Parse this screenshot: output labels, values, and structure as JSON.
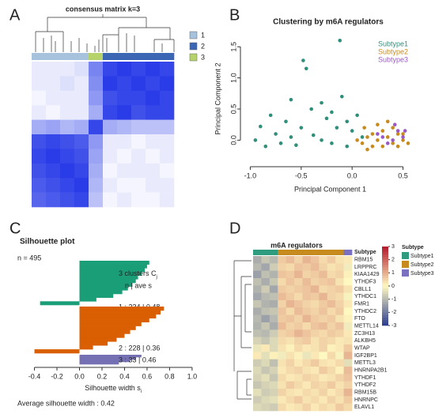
{
  "chart_data": [
    {
      "type": "consensus",
      "label": "A",
      "title": "consensus matrix k=3",
      "legend": [
        {
          "name": "1",
          "color": "#a6c2dc"
        },
        {
          "name": "2",
          "color": "#3a66b4"
        },
        {
          "name": "3",
          "color": "#b5d36a"
        }
      ],
      "column_clusters": [
        "1",
        "1",
        "1",
        "1",
        "3",
        "2",
        "2",
        "2",
        "2",
        "2"
      ],
      "clim": [
        0,
        1
      ],
      "values": [
        [
          0.1,
          0.1,
          0.1,
          0.15,
          0.6,
          0.9,
          0.95,
          0.9,
          0.95,
          0.9
        ],
        [
          0.1,
          0.1,
          0.15,
          0.1,
          0.55,
          0.95,
          0.9,
          0.95,
          0.9,
          0.95
        ],
        [
          0.05,
          0.1,
          0.1,
          0.1,
          0.5,
          0.85,
          0.9,
          0.9,
          0.95,
          0.9
        ],
        [
          0.1,
          0.05,
          0.1,
          0.1,
          0.4,
          0.9,
          0.95,
          0.85,
          0.9,
          0.9
        ],
        [
          0.4,
          0.45,
          0.35,
          0.4,
          0.9,
          0.4,
          0.35,
          0.3,
          0.3,
          0.3
        ],
        [
          0.85,
          0.9,
          0.85,
          0.8,
          0.5,
          0.1,
          0.1,
          0.05,
          0.1,
          0.1
        ],
        [
          0.9,
          0.95,
          0.9,
          0.85,
          0.45,
          0.1,
          0.05,
          0.1,
          0.05,
          0.1
        ],
        [
          0.85,
          0.9,
          0.95,
          0.9,
          0.4,
          0.05,
          0.1,
          0.1,
          0.1,
          0.05
        ],
        [
          0.8,
          0.85,
          0.9,
          0.95,
          0.35,
          0.1,
          0.05,
          0.05,
          0.1,
          0.1
        ],
        [
          0.75,
          0.8,
          0.85,
          0.9,
          0.3,
          0.05,
          0.1,
          0.05,
          0.05,
          0.1
        ]
      ]
    },
    {
      "type": "scatter",
      "label": "B",
      "title": "Clustering by m6A regulators",
      "x_label": "Principal Component 1",
      "y_label": "Principal Component 2",
      "xlim": [
        -1.05,
        0.62
      ],
      "ylim": [
        -0.35,
        1.68
      ],
      "xticks": [
        {
          "value": -1.0,
          "label": "-1.0"
        },
        -0.5,
        {
          "value": 0.0,
          "label": "0.0"
        },
        0.5
      ],
      "yticks": [
        {
          "value": 0.0,
          "label": "0.0"
        },
        0.5,
        {
          "value": 1.0,
          "label": "1.0"
        },
        1.5
      ],
      "series": [
        {
          "name": "Subtype1",
          "color": "#2f8f7a",
          "x": [
            -0.95,
            -0.9,
            -0.85,
            -0.8,
            -0.75,
            -0.7,
            -0.65,
            -0.6,
            -0.55,
            -0.5,
            -0.48,
            -0.45,
            -0.4,
            -0.38,
            -0.3,
            -0.25,
            -0.2,
            -0.15,
            -0.12,
            -0.1,
            -0.05,
            0.0,
            0.05,
            -0.3,
            -0.2,
            0.1,
            -0.6,
            -0.05
          ],
          "values": [
            0.0,
            0.22,
            -0.1,
            0.4,
            0.1,
            -0.05,
            0.3,
            0.05,
            -0.08,
            0.2,
            1.28,
            1.15,
            0.5,
            0.08,
            0.6,
            0.35,
            0.45,
            0.2,
            1.6,
            0.7,
            0.3,
            0.15,
            0.4,
            0.0,
            -0.05,
            0.05,
            0.65,
            -0.1
          ]
        },
        {
          "name": "Subtype2",
          "color": "#c78a1c",
          "x": [
            0.05,
            0.1,
            0.15,
            0.2,
            0.25,
            0.3,
            0.35,
            0.4,
            0.45,
            0.5,
            0.55,
            0.2,
            0.3,
            0.4,
            0.5,
            0.12,
            0.25,
            0.35,
            0.45,
            0.15
          ],
          "values": [
            0.0,
            -0.05,
            0.05,
            0.1,
            0.0,
            0.15,
            0.05,
            0.2,
            0.1,
            0.0,
            -0.05,
            -0.1,
            -0.1,
            -0.05,
            0.1,
            0.2,
            0.25,
            0.3,
            -0.1,
            -0.15
          ]
        },
        {
          "name": "Subtype3",
          "color": "#9b59c6",
          "x": [
            0.3,
            0.4,
            0.45,
            0.5,
            0.35,
            0.42,
            0.25,
            0.52
          ],
          "values": [
            0.05,
            0.0,
            0.15,
            0.05,
            -0.05,
            0.25,
            0.1,
            0.15
          ]
        }
      ]
    },
    {
      "type": "silhouette",
      "label": "C",
      "title": "Silhouette plot",
      "n_label": "n = 495",
      "header": "3 clusters  C",
      "header_sub": "j",
      "subheader": "n  |  ave     s",
      "x_label": "Silhouette width s",
      "x_label_sub": "i",
      "average_label": "Average silhouette width : 0.42",
      "xlim": [
        -0.46,
        1.05
      ],
      "xticks": [
        -0.4,
        -0.2,
        {
          "value": 0.0,
          "label": "0.0"
        },
        0.2,
        0.4,
        0.6,
        0.8,
        {
          "value": 1.0,
          "label": "1.0"
        }
      ],
      "clusters": [
        {
          "label": "1 :  234  |  0.48",
          "color": "#1a9e77",
          "values": [
            0.62,
            0.6,
            0.58,
            0.55,
            0.52,
            0.5,
            0.47,
            0.43,
            0.38,
            0.3,
            0.15,
            -0.35
          ]
        },
        {
          "label": "2 :  228  |  0.36",
          "color": "#d95f02",
          "values": [
            0.75,
            0.72,
            0.68,
            0.62,
            0.55,
            0.5,
            0.45,
            0.4,
            0.33,
            0.25,
            0.12,
            -0.4
          ]
        },
        {
          "label": "3 :   33  |  0.46",
          "color": "#7570b3",
          "values": [
            0.55,
            0.5,
            0.45,
            0.35
          ]
        }
      ]
    },
    {
      "type": "heatmap",
      "label": "D",
      "title": "m6A regulators",
      "annotation_label": "Subtype",
      "legend_title": "Subtype",
      "groups": [
        {
          "name": "Subtype1",
          "color": "#2f9b7f"
        },
        {
          "name": "Subtype2",
          "color": "#c78a1c"
        },
        {
          "name": "Subtype3",
          "color": "#7b6fc0"
        }
      ],
      "column_groups": [
        "Subtype1",
        "Subtype1",
        "Subtype1",
        "Subtype2",
        "Subtype2",
        "Subtype2",
        "Subtype2",
        "Subtype2",
        "Subtype2",
        "Subtype2",
        "Subtype2",
        "Subtype3"
      ],
      "clim": [
        -3,
        3
      ],
      "cticks": [
        3,
        2,
        1,
        0,
        -1,
        -2,
        -3
      ],
      "rows": [
        "RBM15",
        "LRPPRC",
        "KIAA1429",
        "YTHDF3",
        "CBLL1",
        "YTHDC1",
        "FMR1",
        "YTHDC2",
        "FTO",
        "METTL14",
        "ZC3H13",
        "ALKBH5",
        "WTAP",
        "IGF2BP1",
        "METTL3",
        "HNRNPA2B1",
        "YTHDF1",
        "YTHDF2",
        "RBM15B",
        "HNRNPC",
        "ELAVL1"
      ],
      "values": [
        [
          -1.2,
          -0.8,
          -1.0,
          0.6,
          0.8,
          0.5,
          0.9,
          0.7,
          0.4,
          0.6,
          0.3,
          0.2
        ],
        [
          -1.0,
          -1.3,
          -0.7,
          0.5,
          0.4,
          0.7,
          0.6,
          0.8,
          0.5,
          0.3,
          0.4,
          -0.2
        ],
        [
          -1.4,
          -0.9,
          -1.1,
          0.7,
          0.6,
          0.9,
          0.5,
          0.6,
          0.8,
          0.4,
          0.5,
          0.1
        ],
        [
          -0.9,
          -1.2,
          -0.8,
          0.4,
          0.7,
          0.5,
          0.8,
          0.5,
          0.6,
          0.7,
          0.3,
          0.0
        ],
        [
          -1.1,
          -0.7,
          -1.3,
          0.6,
          0.5,
          0.6,
          0.7,
          0.9,
          0.4,
          0.5,
          0.6,
          0.3
        ],
        [
          -1.3,
          -1.0,
          -0.9,
          0.8,
          0.6,
          0.4,
          0.7,
          0.6,
          0.9,
          0.5,
          0.4,
          -0.1
        ],
        [
          -0.8,
          -1.1,
          -1.2,
          0.5,
          0.9,
          0.7,
          0.5,
          0.4,
          0.6,
          0.8,
          0.5,
          0.2
        ],
        [
          -1.2,
          -0.9,
          -0.8,
          0.7,
          0.4,
          0.8,
          0.6,
          0.5,
          0.7,
          0.4,
          0.6,
          0.0
        ],
        [
          -1.0,
          -1.4,
          -1.0,
          0.6,
          0.7,
          0.5,
          0.9,
          0.6,
          0.5,
          0.6,
          0.3,
          0.1
        ],
        [
          -1.1,
          -0.8,
          -1.2,
          0.8,
          0.5,
          0.6,
          0.4,
          0.7,
          0.8,
          0.5,
          0.7,
          -0.2
        ],
        [
          -0.9,
          -1.0,
          -0.7,
          0.5,
          0.6,
          0.9,
          0.7,
          0.5,
          0.4,
          0.6,
          0.5,
          0.2
        ],
        [
          -0.6,
          -0.8,
          -0.5,
          0.4,
          0.3,
          0.5,
          0.6,
          0.3,
          0.5,
          0.4,
          0.2,
          0.3
        ],
        [
          -0.3,
          0.2,
          -0.5,
          0.3,
          0.1,
          0.4,
          0.2,
          0.3,
          0.5,
          0.1,
          0.2,
          0.6
        ],
        [
          0.2,
          -0.4,
          0.1,
          -0.2,
          0.3,
          0.1,
          -0.3,
          0.2,
          0.0,
          0.4,
          -0.1,
          0.9
        ],
        [
          -0.7,
          -0.5,
          -0.9,
          0.3,
          0.5,
          0.2,
          0.4,
          0.6,
          0.3,
          0.2,
          0.4,
          -0.4
        ],
        [
          -0.5,
          -0.8,
          -0.6,
          0.2,
          0.4,
          0.5,
          0.3,
          0.2,
          0.6,
          0.4,
          0.1,
          0.8
        ],
        [
          -0.6,
          -0.4,
          -0.8,
          0.4,
          0.2,
          0.3,
          0.5,
          0.4,
          0.2,
          0.3,
          0.5,
          0.7
        ],
        [
          -0.8,
          -0.6,
          -0.5,
          0.3,
          0.6,
          0.4,
          0.2,
          0.5,
          0.4,
          0.6,
          0.3,
          0.5
        ],
        [
          -0.4,
          -0.7,
          -0.6,
          0.5,
          0.3,
          0.2,
          0.4,
          0.3,
          0.5,
          0.2,
          0.4,
          0.9
        ],
        [
          -0.7,
          -0.5,
          -0.4,
          0.2,
          0.4,
          0.6,
          0.3,
          0.4,
          0.2,
          0.5,
          0.3,
          0.6
        ],
        [
          -0.5,
          -0.6,
          -0.7,
          0.4,
          0.2,
          0.3,
          0.5,
          0.2,
          0.4,
          0.3,
          0.6,
          0.4
        ]
      ]
    }
  ]
}
